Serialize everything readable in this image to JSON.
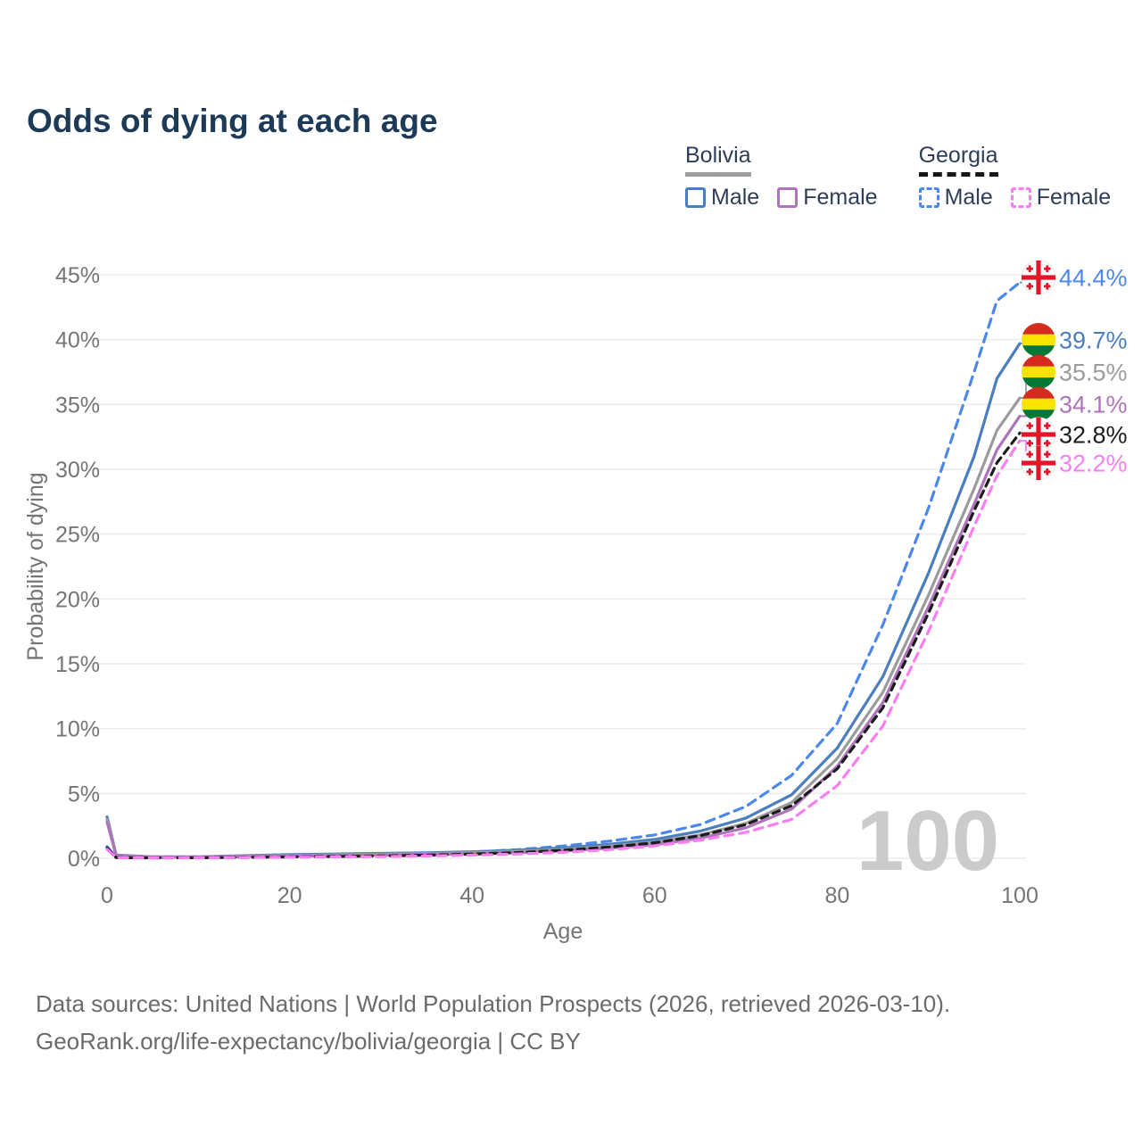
{
  "title": "Odds of dying at each age",
  "legend": {
    "groups": [
      {
        "country": "Bolivia",
        "line_style": "solid",
        "underline_color": "#9e9e9e",
        "items": [
          {
            "label": "Male",
            "color": "#4a7ebf",
            "dashed": false
          },
          {
            "label": "Female",
            "color": "#ae74ba",
            "dashed": false
          }
        ]
      },
      {
        "country": "Georgia",
        "line_style": "dashed",
        "underline_color": "#161616",
        "items": [
          {
            "label": "Male",
            "color": "#4c87ee",
            "dashed": true
          },
          {
            "label": "Female",
            "color": "#fa7df2",
            "dashed": true
          }
        ]
      }
    ]
  },
  "chart_data": {
    "type": "line",
    "title": "Odds of dying at each age",
    "xlabel": "Age",
    "ylabel": "Probability of dying",
    "x_ticks": [
      0,
      20,
      40,
      60,
      80,
      100
    ],
    "y_ticks_percent": [
      0,
      5,
      10,
      15,
      20,
      25,
      30,
      35,
      40,
      45
    ],
    "xlim": [
      0,
      100
    ],
    "ylim_percent": [
      0,
      45
    ],
    "grid": "horizontal-only",
    "watermark": "100",
    "x": [
      0,
      1,
      5,
      10,
      15,
      20,
      25,
      30,
      35,
      40,
      45,
      50,
      55,
      60,
      65,
      70,
      75,
      80,
      85,
      90,
      95,
      97.5,
      100
    ],
    "series": [
      {
        "name": "Georgia Male",
        "color": "#4c87ee",
        "dashed": true,
        "flag": "georgia",
        "end_label": "44.4%",
        "values": [
          0.9,
          0.06,
          0.04,
          0.05,
          0.09,
          0.15,
          0.21,
          0.27,
          0.36,
          0.48,
          0.67,
          0.95,
          1.32,
          1.8,
          2.6,
          4.0,
          6.4,
          10.4,
          18.0,
          27.0,
          37.5,
          43.0,
          44.4
        ]
      },
      {
        "name": "Bolivia Male",
        "color": "#4a7ebf",
        "dashed": false,
        "flag": "bolivia",
        "end_label": "39.7%",
        "values": [
          3.2,
          0.25,
          0.12,
          0.12,
          0.2,
          0.28,
          0.33,
          0.38,
          0.43,
          0.5,
          0.63,
          0.8,
          1.08,
          1.45,
          2.1,
          3.1,
          4.9,
          8.5,
          14.0,
          22.0,
          31.0,
          37.0,
          39.7
        ]
      },
      {
        "name": "Bolivia Both sexes",
        "color": "#9b9b9b",
        "dashed": false,
        "flag": "bolivia",
        "end_label": "35.5%",
        "values": [
          3.0,
          0.22,
          0.1,
          0.1,
          0.16,
          0.22,
          0.27,
          0.31,
          0.37,
          0.43,
          0.54,
          0.68,
          0.93,
          1.25,
          1.8,
          2.7,
          4.3,
          7.7,
          12.8,
          20.3,
          28.5,
          33.0,
          35.5
        ]
      },
      {
        "name": "Bolivia Female",
        "color": "#ae74ba",
        "dashed": false,
        "flag": "bolivia",
        "end_label": "34.1%",
        "values": [
          2.8,
          0.2,
          0.09,
          0.09,
          0.13,
          0.17,
          0.2,
          0.24,
          0.3,
          0.36,
          0.45,
          0.57,
          0.78,
          1.05,
          1.55,
          2.35,
          3.8,
          7.1,
          12.0,
          19.4,
          27.3,
          31.5,
          34.1
        ]
      },
      {
        "name": "Georgia Both sexes",
        "color": "#1c1c1c",
        "dashed": true,
        "flag": "georgia",
        "end_label": "32.8%",
        "values": [
          0.8,
          0.05,
          0.035,
          0.04,
          0.07,
          0.1,
          0.14,
          0.18,
          0.24,
          0.32,
          0.44,
          0.62,
          0.86,
          1.2,
          1.75,
          2.6,
          4.05,
          6.9,
          11.6,
          18.9,
          26.8,
          30.5,
          32.8
        ]
      },
      {
        "name": "Georgia Female",
        "color": "#fa7df2",
        "dashed": true,
        "flag": "georgia",
        "end_label": "32.2%",
        "values": [
          0.7,
          0.04,
          0.03,
          0.035,
          0.055,
          0.08,
          0.1,
          0.13,
          0.18,
          0.24,
          0.33,
          0.46,
          0.66,
          0.95,
          1.4,
          2.0,
          3.0,
          5.6,
          10.2,
          17.5,
          25.6,
          29.5,
          32.2
        ]
      }
    ],
    "flag_colors": {
      "bolivia": {
        "red": "#d52b1e",
        "yellow": "#f9e300",
        "green": "#007934"
      },
      "georgia": {
        "white": "#ffffff",
        "red": "#e0162b"
      }
    },
    "gridline_color": "#ececec",
    "axis_text_color": "#757575",
    "watermark_color": "#cbcbcb"
  },
  "footer": {
    "line1": "Data sources: United Nations | World Population Prospects (2026, retrieved 2026-03-10).",
    "line2": "GeoRank.org/life-expectancy/bolivia/georgia | CC BY"
  }
}
